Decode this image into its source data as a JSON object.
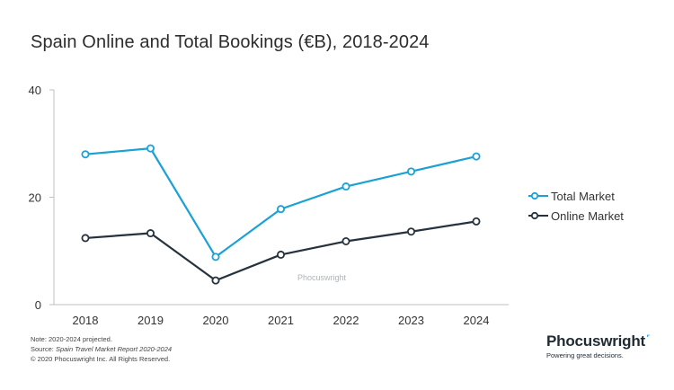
{
  "chart_data": {
    "type": "line",
    "title": "Spain Online and Total Bookings (€B), 2018-2024",
    "xlabel": "",
    "ylabel": "",
    "categories": [
      "2018",
      "2019",
      "2020",
      "2021",
      "2022",
      "2023",
      "2024"
    ],
    "yticks": [
      "0",
      "20",
      "40"
    ],
    "ylim": [
      0,
      40
    ],
    "grid": false,
    "legend_position": "right",
    "series": [
      {
        "name": "Total Market",
        "color": "#1ba1d4",
        "values": [
          28.0,
          29.1,
          8.9,
          17.8,
          22.0,
          24.8,
          27.6
        ]
      },
      {
        "name": "Online Market",
        "color": "#26323d",
        "values": [
          12.4,
          13.3,
          4.5,
          9.3,
          11.8,
          13.6,
          15.5
        ]
      }
    ]
  },
  "watermark": "Phocuswright",
  "notes": {
    "line1": "Note: 2020-2024 projected.",
    "line2_prefix": "Source: ",
    "line2_source": "Spain Travel Market Report 2020-2024",
    "line3": "© 2020 Phocuswright Inc. All Rights Reserved."
  },
  "brand": {
    "name": "Phocuswright",
    "tagline": "Powering great decisions."
  }
}
